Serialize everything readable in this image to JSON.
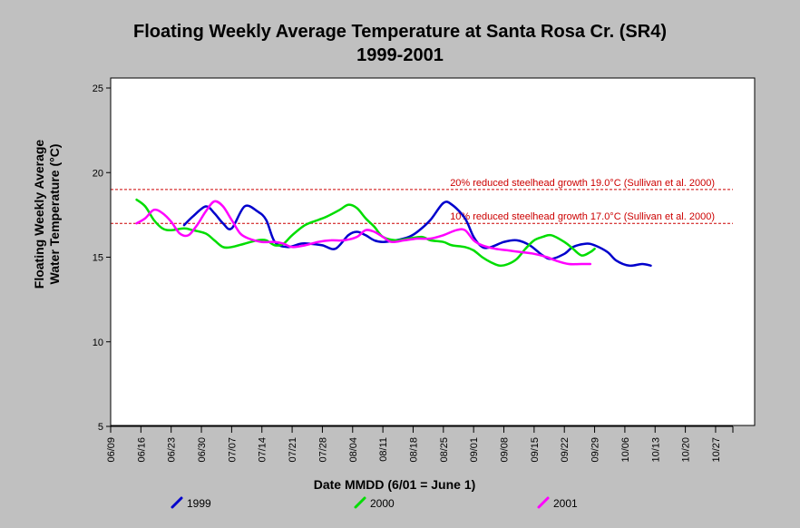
{
  "chart_data": {
    "type": "line",
    "title_line1": "Floating Weekly Average Temperature at Santa Rosa Cr. (SR4)",
    "title_line2": "1999-2001",
    "ylabel_line1": "Floating Weekly Average",
    "ylabel_line2": "Water Temperature (°C)",
    "xlabel": "Date MMDD (6/01 = June 1)",
    "ylim": [
      5,
      25
    ],
    "yticks": [
      5,
      10,
      15,
      20,
      25
    ],
    "xlim": [
      "06/09",
      "10/31"
    ],
    "xticks": [
      "06/09",
      "06/16",
      "06/23",
      "06/30",
      "07/07",
      "07/14",
      "07/21",
      "07/28",
      "08/04",
      "08/11",
      "08/18",
      "08/25",
      "09/01",
      "09/08",
      "09/15",
      "09/22",
      "09/29",
      "10/06",
      "10/13",
      "10/20",
      "10/27"
    ],
    "reference_lines": [
      {
        "y": 19.0,
        "label": "20% reduced steelhead growth 19.0°C (Sullivan et al. 2000)",
        "color": "#cc0000"
      },
      {
        "y": 17.0,
        "label": "10% reduced steelhead growth 17.0°C (Sullivan et al. 2000)",
        "color": "#cc0000"
      }
    ],
    "legend_position": "bottom",
    "series": [
      {
        "name": "1999",
        "color": "#0000cc",
        "points": [
          [
            "06/26",
            16.9
          ],
          [
            "06/28",
            17.4
          ],
          [
            "07/01",
            18.0
          ],
          [
            "07/03",
            17.6
          ],
          [
            "07/05",
            17.0
          ],
          [
            "07/07",
            16.7
          ],
          [
            "07/10",
            18.0
          ],
          [
            "07/13",
            17.7
          ],
          [
            "07/15",
            17.2
          ],
          [
            "07/17",
            15.9
          ],
          [
            "07/20",
            15.6
          ],
          [
            "07/23",
            15.8
          ],
          [
            "07/25",
            15.8
          ],
          [
            "07/28",
            15.7
          ],
          [
            "07/31",
            15.5
          ],
          [
            "08/03",
            16.3
          ],
          [
            "08/05",
            16.5
          ],
          [
            "08/07",
            16.3
          ],
          [
            "08/09",
            16.0
          ],
          [
            "08/11",
            15.9
          ],
          [
            "08/14",
            16.0
          ],
          [
            "08/17",
            16.2
          ],
          [
            "08/19",
            16.5
          ],
          [
            "08/22",
            17.2
          ],
          [
            "08/25",
            18.2
          ],
          [
            "08/27",
            18.1
          ],
          [
            "08/30",
            17.3
          ],
          [
            "09/01",
            16.2
          ],
          [
            "09/03",
            15.6
          ],
          [
            "09/05",
            15.6
          ],
          [
            "09/08",
            15.9
          ],
          [
            "09/11",
            16.0
          ],
          [
            "09/14",
            15.7
          ],
          [
            "09/17",
            15.1
          ],
          [
            "09/19",
            14.9
          ],
          [
            "09/22",
            15.2
          ],
          [
            "09/24",
            15.6
          ],
          [
            "09/27",
            15.8
          ],
          [
            "09/29",
            15.7
          ],
          [
            "10/02",
            15.3
          ],
          [
            "10/04",
            14.8
          ],
          [
            "10/07",
            14.5
          ],
          [
            "10/10",
            14.6
          ],
          [
            "10/12",
            14.5
          ]
        ]
      },
      {
        "name": "2000",
        "color": "#00dd00",
        "points": [
          [
            "06/15",
            18.4
          ],
          [
            "06/17",
            18.0
          ],
          [
            "06/19",
            17.2
          ],
          [
            "06/21",
            16.7
          ],
          [
            "06/23",
            16.6
          ],
          [
            "06/26",
            16.7
          ],
          [
            "06/28",
            16.6
          ],
          [
            "07/01",
            16.4
          ],
          [
            "07/03",
            16.0
          ],
          [
            "07/05",
            15.6
          ],
          [
            "07/07",
            15.6
          ],
          [
            "07/10",
            15.8
          ],
          [
            "07/13",
            16.0
          ],
          [
            "07/15",
            16.0
          ],
          [
            "07/17",
            15.7
          ],
          [
            "07/19",
            15.8
          ],
          [
            "07/21",
            16.3
          ],
          [
            "07/24",
            16.9
          ],
          [
            "07/27",
            17.2
          ],
          [
            "07/29",
            17.4
          ],
          [
            "08/01",
            17.8
          ],
          [
            "08/03",
            18.1
          ],
          [
            "08/05",
            17.9
          ],
          [
            "08/07",
            17.3
          ],
          [
            "08/09",
            16.8
          ],
          [
            "08/11",
            16.2
          ],
          [
            "08/14",
            16.0
          ],
          [
            "08/17",
            16.1
          ],
          [
            "08/20",
            16.2
          ],
          [
            "08/22",
            16.0
          ],
          [
            "08/25",
            15.9
          ],
          [
            "08/27",
            15.7
          ],
          [
            "08/30",
            15.6
          ],
          [
            "09/01",
            15.4
          ],
          [
            "09/03",
            15.0
          ],
          [
            "09/05",
            14.7
          ],
          [
            "09/07",
            14.5
          ],
          [
            "09/09",
            14.6
          ],
          [
            "09/11",
            14.9
          ],
          [
            "09/13",
            15.5
          ],
          [
            "09/15",
            16.0
          ],
          [
            "09/17",
            16.2
          ],
          [
            "09/19",
            16.3
          ],
          [
            "09/22",
            15.9
          ],
          [
            "09/24",
            15.5
          ],
          [
            "09/26",
            15.1
          ],
          [
            "09/28",
            15.3
          ],
          [
            "09/29",
            15.5
          ]
        ]
      },
      {
        "name": "2001",
        "color": "#ff00ff",
        "points": [
          [
            "06/15",
            17.0
          ],
          [
            "06/17",
            17.3
          ],
          [
            "06/19",
            17.8
          ],
          [
            "06/21",
            17.6
          ],
          [
            "06/23",
            17.1
          ],
          [
            "06/25",
            16.4
          ],
          [
            "06/27",
            16.3
          ],
          [
            "06/29",
            16.9
          ],
          [
            "07/01",
            17.7
          ],
          [
            "07/03",
            18.3
          ],
          [
            "07/05",
            18.0
          ],
          [
            "07/07",
            17.2
          ],
          [
            "07/09",
            16.4
          ],
          [
            "07/11",
            16.1
          ],
          [
            "07/14",
            15.9
          ],
          [
            "07/17",
            15.9
          ],
          [
            "07/19",
            15.8
          ],
          [
            "07/21",
            15.6
          ],
          [
            "07/24",
            15.7
          ],
          [
            "07/27",
            15.9
          ],
          [
            "07/30",
            16.0
          ],
          [
            "08/02",
            16.0
          ],
          [
            "08/05",
            16.2
          ],
          [
            "08/07",
            16.6
          ],
          [
            "08/09",
            16.5
          ],
          [
            "08/11",
            16.2
          ],
          [
            "08/13",
            15.9
          ],
          [
            "08/16",
            16.0
          ],
          [
            "08/19",
            16.1
          ],
          [
            "08/22",
            16.1
          ],
          [
            "08/25",
            16.3
          ],
          [
            "08/28",
            16.6
          ],
          [
            "08/30",
            16.6
          ],
          [
            "09/01",
            16.0
          ],
          [
            "09/03",
            15.7
          ],
          [
            "09/06",
            15.5
          ],
          [
            "09/09",
            15.4
          ],
          [
            "09/12",
            15.3
          ],
          [
            "09/15",
            15.2
          ],
          [
            "09/18",
            15.0
          ],
          [
            "09/20",
            14.8
          ],
          [
            "09/23",
            14.6
          ],
          [
            "09/26",
            14.6
          ],
          [
            "09/28",
            14.6
          ]
        ]
      }
    ]
  }
}
